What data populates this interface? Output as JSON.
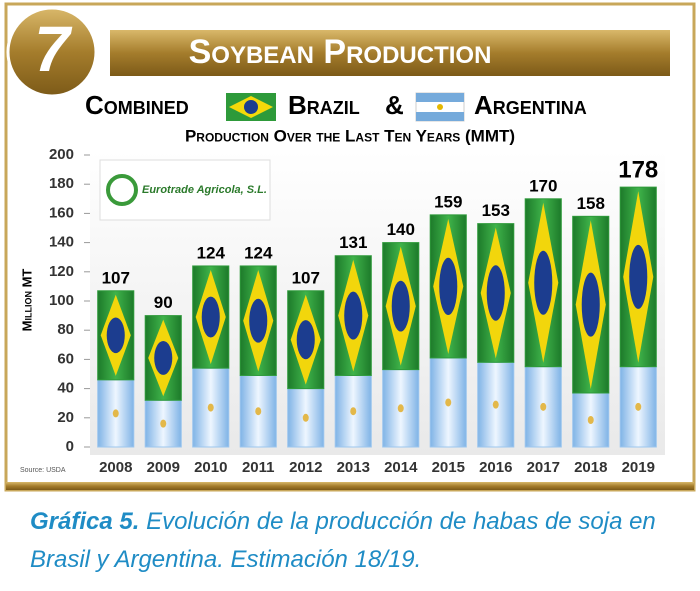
{
  "chart_data": {
    "type": "stacked_bar",
    "title": "Soybean Production",
    "badge": "7",
    "title_line2": {
      "lead": "Combined",
      "join": "&"
    },
    "subtitle": "Production Over the Last Ten Years (MMT)",
    "y_label": "Million MT",
    "logo": "Eurotrade Agricola, S.L.",
    "source": "Source: USDA",
    "categories": [
      "2008",
      "2009",
      "2010",
      "2011",
      "2012",
      "2013",
      "2014",
      "2015",
      "2016",
      "2017",
      "2018",
      "2019"
    ],
    "series": [
      {
        "name": "Argentina",
        "color": "#9cc6ee",
        "values": [
          46,
          32,
          54,
          49,
          40,
          49,
          53,
          61,
          58,
          55,
          37,
          55
        ]
      },
      {
        "name": "Brazil",
        "color": "#2e9a3a",
        "values": [
          61,
          58,
          70,
          75,
          67,
          82,
          87,
          98,
          95,
          115,
          121,
          123
        ]
      }
    ],
    "totals": [
      107,
      90,
      124,
      124,
      107,
      131,
      140,
      159,
      153,
      170,
      158,
      178
    ],
    "ylim": [
      0,
      200
    ],
    "yticks": [
      0,
      20,
      40,
      60,
      80,
      100,
      120,
      140,
      160,
      180,
      200
    ],
    "grid": false,
    "caption": {
      "label": "Gráfica 5.",
      "text": "Evolución de la producción de habas de soja en Brasil y Argentina. Estimación 18/19."
    }
  }
}
